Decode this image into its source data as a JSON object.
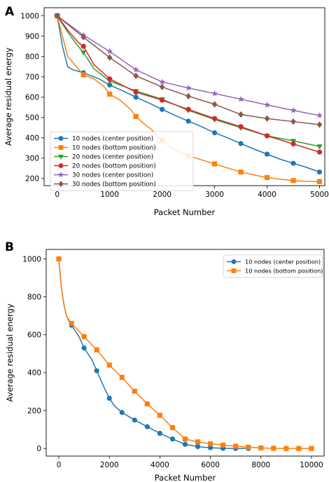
{
  "chart_data": [
    {
      "panel": "A",
      "type": "line",
      "xlabel": "Packet Number",
      "ylabel": "Average residual energy",
      "xlim": [
        -250,
        5100
      ],
      "ylim": [
        165,
        1040
      ],
      "xticks": [
        "0",
        "1000",
        "2000",
        "3000",
        "4000",
        "5000"
      ],
      "yticks": [
        "200",
        "300",
        "400",
        "500",
        "600",
        "700",
        "800",
        "900",
        "1000"
      ],
      "legend_position": "lower-left",
      "series": [
        {
          "name": "10 nodes (center position)",
          "color": "#1f77b4",
          "marker": "circle",
          "markevery": 500,
          "x": [
            0,
            100,
            200,
            300,
            500,
            800,
            1000,
            1300,
            1500,
            1800,
            2000,
            2250,
            2500,
            2750,
            3000,
            3250,
            3500,
            3750,
            4000,
            4250,
            4500,
            4750,
            5000
          ],
          "y": [
            1000,
            850,
            750,
            735,
            720,
            690,
            660,
            625,
            600,
            565,
            540,
            510,
            482,
            455,
            425,
            400,
            372,
            345,
            320,
            295,
            275,
            255,
            232
          ]
        },
        {
          "name": "10 nodes (bottom position)",
          "color": "#ff7f0e",
          "marker": "square",
          "markevery": 500,
          "x": [
            0,
            100,
            200,
            300,
            400,
            500,
            700,
            900,
            1000,
            1200,
            1400,
            1500,
            1650,
            1800,
            1900,
            2000,
            2200,
            2500,
            2800,
            3000,
            3300,
            3500,
            3800,
            4000,
            4300,
            4500,
            4700,
            5000
          ],
          "y": [
            1000,
            900,
            800,
            770,
            740,
            710,
            690,
            650,
            615,
            585,
            540,
            505,
            470,
            440,
            410,
            388,
            345,
            312,
            288,
            272,
            248,
            232,
            215,
            205,
            195,
            190,
            187,
            185
          ]
        },
        {
          "name": "20 nodes (center position)",
          "color": "#2ca02c",
          "marker": "triangle-down",
          "markevery": 500,
          "x": [
            0,
            200,
            400,
            500,
            700,
            1000,
            1500,
            2000,
            2500,
            3000,
            3500,
            4000,
            4500,
            5000
          ],
          "y": [
            1000,
            920,
            850,
            820,
            740,
            680,
            630,
            590,
            535,
            490,
            450,
            410,
            385,
            358
          ]
        },
        {
          "name": "20 nodes (bottom position)",
          "color": "#d62728",
          "marker": "circle",
          "markevery": 500,
          "x": [
            0,
            200,
            400,
            500,
            700,
            1000,
            1500,
            2000,
            2500,
            3000,
            3500,
            4000,
            4500,
            5000
          ],
          "y": [
            1000,
            930,
            870,
            850,
            760,
            690,
            625,
            585,
            540,
            495,
            455,
            410,
            370,
            330
          ]
        },
        {
          "name": "30 nodes (center position)",
          "color": "#9467bd",
          "marker": "star",
          "markevery": 500,
          "x": [
            0,
            500,
            1000,
            1500,
            2000,
            2500,
            3000,
            3500,
            4000,
            4500,
            5000
          ],
          "y": [
            1000,
            905,
            825,
            735,
            675,
            645,
            618,
            590,
            562,
            535,
            510
          ]
        },
        {
          "name": "30 nodes (bottom position)",
          "color": "#8c564b",
          "marker": "diamond",
          "markevery": 500,
          "x": [
            0,
            500,
            1000,
            1500,
            2000,
            2500,
            3000,
            3500,
            4000,
            4500,
            5000
          ],
          "y": [
            1000,
            895,
            795,
            705,
            650,
            605,
            565,
            515,
            495,
            480,
            465
          ]
        }
      ]
    },
    {
      "panel": "B",
      "type": "line",
      "xlabel": "Packet Number",
      "ylabel": "Average residual energy",
      "xlim": [
        -500,
        10500
      ],
      "ylim": [
        -40,
        1050
      ],
      "xticks": [
        "0",
        "2000",
        "4000",
        "6000",
        "8000",
        "10000"
      ],
      "yticks": [
        "0",
        "200",
        "400",
        "600",
        "800",
        "1000"
      ],
      "legend_position": "upper-right",
      "series": [
        {
          "name": "10 nodes (center position)",
          "color": "#1f77b4",
          "marker": "circle",
          "markevery": 500,
          "x": [
            0,
            100,
            200,
            300,
            500,
            800,
            1000,
            1300,
            1500,
            1700,
            1800,
            2000,
            2200,
            2500,
            3000,
            3500,
            4000,
            4500,
            5000,
            5500,
            6000,
            6500,
            7000,
            7500
          ],
          "y": [
            1000,
            850,
            760,
            700,
            650,
            590,
            530,
            470,
            410,
            350,
            320,
            265,
            225,
            190,
            150,
            115,
            80,
            50,
            22,
            10,
            4,
            1,
            0,
            0
          ]
        },
        {
          "name": "10 nodes (bottom position)",
          "color": "#ff7f0e",
          "marker": "square",
          "markevery": 500,
          "x": [
            0,
            100,
            200,
            300,
            500,
            1000,
            1500,
            2000,
            2500,
            3000,
            3500,
            4000,
            4500,
            5000,
            5500,
            6000,
            6500,
            7000,
            7500,
            8000,
            8500,
            9000,
            9500,
            10000
          ],
          "y": [
            1000,
            850,
            760,
            700,
            660,
            590,
            520,
            440,
            375,
            302,
            235,
            175,
            110,
            50,
            35,
            25,
            18,
            12,
            7,
            3,
            1,
            0,
            0,
            0
          ]
        }
      ]
    }
  ]
}
